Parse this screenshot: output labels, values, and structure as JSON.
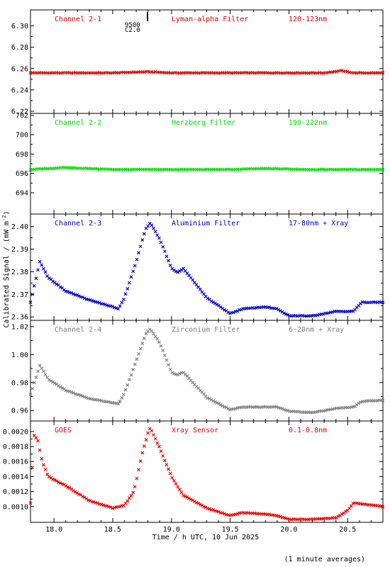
{
  "figure": {
    "ylabel": "Calibrated Signal / (mW m",
    "ylabel_sup": "-2",
    "ylabel_end": ")",
    "xlabel": "Time / h UTC, 10 Jun 2025",
    "footnote": "(1 minute averages)",
    "marker_annotation": [
      "9500",
      "C2.0"
    ]
  },
  "chart_data": [
    {
      "type": "scatter",
      "panel": 1,
      "labels": [
        "Channel 2-1",
        "Lyman-alpha Filter",
        "120-123nm"
      ],
      "color": "#dd0000",
      "xlim": [
        17.8,
        20.8
      ],
      "ylim": [
        6.218,
        6.315
      ],
      "yticks": [
        "6.30",
        "6.28",
        "6.26",
        "6.24",
        "6.22"
      ],
      "series": [
        {
          "x": [
            17.8,
            18.5,
            18.8,
            19.0,
            20.3,
            20.45,
            20.55,
            20.8
          ],
          "y": [
            6.256,
            6.256,
            6.257,
            6.256,
            6.256,
            6.258,
            6.256,
            6.256
          ]
        }
      ]
    },
    {
      "type": "scatter",
      "panel": 2,
      "labels": [
        "Channel 2-2",
        "Herzberg Filter",
        "190-222nm"
      ],
      "color": "#00dd00",
      "xlim": [
        17.8,
        20.8
      ],
      "ylim": [
        691.8,
        702.2
      ],
      "yticks": [
        "702",
        "700",
        "698",
        "696",
        "694"
      ],
      "series": [
        {
          "x": [
            17.8,
            18.1,
            18.5,
            19.5,
            19.8,
            20.2,
            20.8
          ],
          "y": [
            696.4,
            696.6,
            696.4,
            696.4,
            696.5,
            696.4,
            696.4
          ]
        }
      ]
    },
    {
      "type": "scatter",
      "panel": 3,
      "labels": [
        "Channel 2-3",
        "Aluminium Filter",
        "17-80nm + Xray"
      ],
      "color": "#0000cc",
      "xlim": [
        17.8,
        20.8
      ],
      "ylim": [
        2.3585,
        2.4055
      ],
      "yticks": [
        "2.40",
        "2.39",
        "2.38",
        "2.37",
        "2.36"
      ],
      "series": [
        {
          "x": [
            17.8,
            17.88,
            17.95,
            18.1,
            18.3,
            18.5,
            18.55,
            18.6,
            18.7,
            18.78,
            18.82,
            18.9,
            19.0,
            19.05,
            19.1,
            19.3,
            19.5,
            19.6,
            19.8,
            19.9,
            20.0,
            20.2,
            20.4,
            20.55,
            20.62,
            20.8
          ],
          "y": [
            2.3665,
            2.3845,
            2.3775,
            2.3715,
            2.3675,
            2.3645,
            2.3635,
            2.3685,
            2.3845,
            2.399,
            2.4015,
            2.3945,
            2.3815,
            2.3795,
            2.3815,
            2.3685,
            2.3615,
            2.3635,
            2.3645,
            2.3635,
            2.3605,
            2.3605,
            2.3625,
            2.3625,
            2.3665,
            2.3665
          ]
        }
      ]
    },
    {
      "type": "scatter",
      "panel": 4,
      "labels": [
        "Channel 2-4",
        "Zirconium Filter",
        "6-20nm + Xray"
      ],
      "color": "#808080",
      "xlim": [
        17.8,
        20.8
      ],
      "ylim": [
        0.9525,
        1.0245
      ],
      "yticks": [
        "1.02",
        "1.00",
        "0.98",
        "0.96"
      ],
      "series": [
        {
          "x": [
            17.8,
            17.88,
            17.95,
            18.1,
            18.3,
            18.5,
            18.55,
            18.6,
            18.7,
            18.78,
            18.82,
            18.9,
            19.0,
            19.05,
            19.1,
            19.3,
            19.5,
            19.6,
            19.8,
            19.9,
            20.0,
            20.2,
            20.4,
            20.55,
            20.62,
            20.8
          ],
          "y": [
            0.9715,
            0.9925,
            0.9825,
            0.9745,
            0.9685,
            0.9655,
            0.9645,
            0.9725,
            0.9955,
            1.0145,
            1.0185,
            1.0085,
            0.9875,
            0.9855,
            0.9875,
            0.9695,
            0.9605,
            0.9625,
            0.9625,
            0.9625,
            0.9595,
            0.9585,
            0.9615,
            0.9625,
            0.9665,
            0.9675
          ]
        }
      ]
    },
    {
      "type": "scatter",
      "panel": 5,
      "labels": [
        "GOES",
        "Xray Sensor",
        "0.1-0.8nm"
      ],
      "color": "#ee0000",
      "xlim": [
        17.8,
        20.8
      ],
      "ylim": [
        0.00079,
        0.00214
      ],
      "yticks": [
        "0.0020",
        "0.0018",
        "0.0016",
        "0.0014",
        "0.0012",
        "0.0010"
      ],
      "xticks": [
        "18.0",
        "18.5",
        "19.0",
        "19.5",
        "20.0",
        "20.5"
      ],
      "series": [
        {
          "x": [
            17.8,
            17.83,
            17.86,
            17.9,
            17.95,
            18.1,
            18.3,
            18.5,
            18.6,
            18.68,
            18.75,
            18.8,
            18.82,
            18.9,
            19.0,
            19.1,
            19.3,
            19.5,
            19.6,
            19.8,
            19.9,
            20.0,
            20.2,
            20.4,
            20.5,
            20.55,
            20.8
          ],
          "y": [
            0.00105,
            0.00195,
            0.0019,
            0.0016,
            0.0014,
            0.00128,
            0.00108,
            0.00098,
            0.00102,
            0.0012,
            0.0017,
            0.00198,
            0.00205,
            0.00178,
            0.0014,
            0.00115,
            0.00098,
            0.00088,
            0.00092,
            0.0009,
            0.00088,
            0.00083,
            0.00083,
            0.00085,
            0.00095,
            0.00105,
            0.001
          ]
        }
      ]
    }
  ]
}
